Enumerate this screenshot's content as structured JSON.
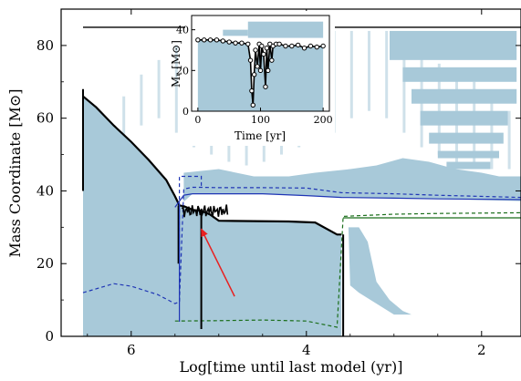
{
  "chart_data": {
    "type": "area",
    "xlabel": "Log[time until last model (yr)]",
    "ylabel": "Mass Coordinate [M⊙]",
    "xlim": [
      6.8,
      1.55
    ],
    "ylim": [
      0,
      90
    ],
    "xticks": [
      {
        "v": 6,
        "label": "6"
      },
      {
        "v": 4,
        "label": "4"
      },
      {
        "v": 2,
        "label": "2"
      }
    ],
    "yticks": [
      {
        "v": 0,
        "label": "0"
      },
      {
        "v": 20,
        "label": "20"
      },
      {
        "v": 40,
        "label": "40"
      },
      {
        "v": 60,
        "label": "60"
      },
      {
        "v": 80,
        "label": "80"
      }
    ],
    "colors": {
      "convective": "#a8c9d9",
      "total_mass": "#000000",
      "he_core": "#1f35b5",
      "co_core": "#1a6e1a",
      "arrow": "#e82020"
    },
    "series": [
      {
        "key": "total_mass_top",
        "x": [
          6.55,
          1.55
        ],
        "y": [
          85,
          85
        ]
      },
      {
        "key": "total_mass",
        "x": [
          6.55,
          6.4,
          6.2,
          6.0,
          5.8,
          5.6,
          5.5,
          5.45,
          5.4,
          5.3,
          5.2,
          5.1,
          5.0,
          4.6,
          4.2,
          3.9,
          3.65,
          3.6
        ],
        "y": [
          66,
          63,
          58,
          53.5,
          48.5,
          43,
          38.5,
          36,
          35.8,
          34.8,
          34.5,
          33.5,
          31.8,
          31.7,
          31.6,
          31.3,
          28,
          28
        ]
      },
      {
        "key": "he_core",
        "x": [
          5.5,
          5.4,
          5.3,
          5.0,
          4.5,
          4.0,
          3.6,
          3.0,
          2.5,
          1.55
        ],
        "y": [
          35.5,
          38.8,
          39.2,
          39.2,
          39.2,
          38.7,
          38.2,
          38.0,
          37.8,
          37.6
        ]
      },
      {
        "key": "he_core_dashed",
        "x": [
          6.55,
          6.2,
          6.0,
          5.7,
          5.5,
          5.45,
          5.4,
          5.3,
          5.2,
          5.0,
          4.5,
          4.0,
          3.6,
          3.0,
          2.5,
          1.55
        ],
        "y": [
          12,
          14.5,
          13.8,
          11.5,
          9,
          9.5,
          40.5,
          41,
          41,
          40.9,
          40.9,
          40.8,
          39.5,
          39.2,
          38.8,
          38.2
        ]
      },
      {
        "key": "co_core",
        "x": [
          3.58,
          3.0,
          2.5,
          1.55
        ],
        "y": [
          32.6,
          32.6,
          32.6,
          32.6
        ]
      },
      {
        "key": "co_core_dashed",
        "x": [
          5.5,
          5.0,
          4.5,
          4.0,
          3.65,
          3.58,
          3.0,
          2.5,
          1.55
        ],
        "y": [
          4.2,
          4.3,
          4.5,
          4.2,
          2.5,
          33,
          33.6,
          33.8,
          34
        ]
      }
    ],
    "annotation": {
      "type": "arrow",
      "from": [
        4.82,
        11.0
      ],
      "to": [
        5.2,
        29.5
      ]
    },
    "inset": {
      "xlabel": "Time [yr]",
      "ylabel": "Mᵣ [M⊙]",
      "xlim": [
        -10,
        210
      ],
      "ylim": [
        0,
        47
      ],
      "xticks": [
        {
          "v": 0,
          "label": "0"
        },
        {
          "v": 100,
          "label": "100"
        },
        {
          "v": 200,
          "label": "200"
        }
      ],
      "yticks": [
        {
          "v": 0,
          "label": "0"
        },
        {
          "v": 20,
          "label": "20"
        },
        {
          "v": 40,
          "label": "40"
        }
      ],
      "series": [
        {
          "key": "inset_mass",
          "x": [
            0,
            10,
            20,
            30,
            40,
            50,
            60,
            70,
            80,
            84,
            86,
            88,
            90,
            92,
            95,
            98,
            100,
            102,
            105,
            108,
            110,
            112,
            115,
            118,
            120,
            125,
            130,
            140,
            150,
            160,
            170,
            180,
            190,
            200
          ],
          "y": [
            35,
            35,
            35,
            35,
            34.5,
            34,
            33.5,
            33.5,
            33,
            25,
            10,
            3,
            18,
            30,
            22,
            33,
            20,
            32,
            28,
            12,
            31,
            20,
            33,
            25,
            32,
            33,
            33,
            32,
            32,
            32.5,
            31,
            32,
            31.5,
            32
          ]
        }
      ]
    }
  }
}
